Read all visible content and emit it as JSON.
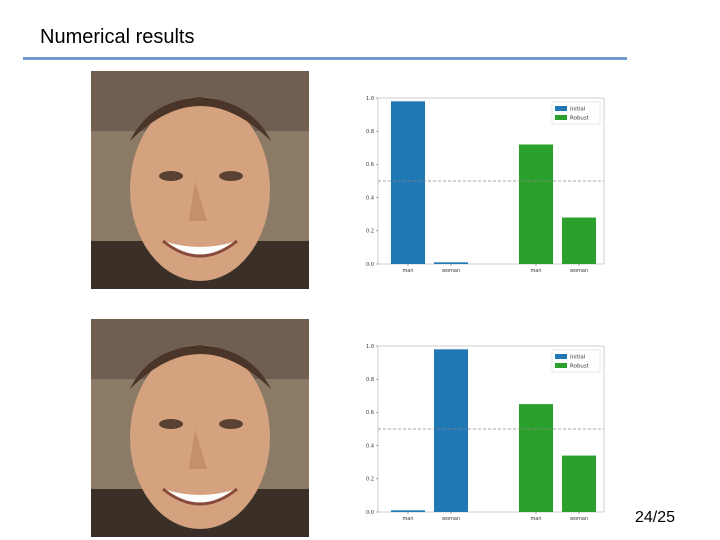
{
  "slide": {
    "title": "Numerical results",
    "page_number": "24/25"
  },
  "colors": {
    "initial": "#1f77b4",
    "robust": "#2ca02c",
    "threshold": "#888888",
    "rule": "#6f9bc9"
  },
  "images": [
    {
      "icon": "face-photo"
    },
    {
      "icon": "face-photo"
    }
  ],
  "chart_data": [
    {
      "type": "bar",
      "categories": [
        "man",
        "woman",
        "man",
        "woman"
      ],
      "series": [
        {
          "name": "Initial",
          "values": [
            0.98,
            0.01,
            null,
            null
          ]
        },
        {
          "name": "Robust",
          "values": [
            null,
            null,
            0.72,
            0.28
          ]
        }
      ],
      "ylim": [
        0,
        1.0
      ],
      "yticks": [
        "0.0",
        "0.2",
        "0.4",
        "0.6",
        "0.8",
        "1.0"
      ],
      "threshold": 0.5,
      "legend": "top-right",
      "grid": false
    },
    {
      "type": "bar",
      "categories": [
        "man",
        "woman",
        "man",
        "woman"
      ],
      "series": [
        {
          "name": "Initial",
          "values": [
            0.01,
            0.98,
            null,
            null
          ]
        },
        {
          "name": "Robust",
          "values": [
            null,
            null,
            0.65,
            0.34
          ]
        }
      ],
      "ylim": [
        0,
        1.0
      ],
      "yticks": [
        "0.0",
        "0.2",
        "0.4",
        "0.6",
        "0.8",
        "1.0"
      ],
      "threshold": 0.5,
      "legend": "top-right",
      "grid": false
    }
  ]
}
